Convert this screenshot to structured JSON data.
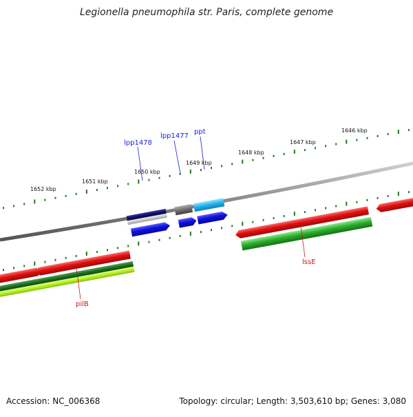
{
  "title": "Legionella pneumophila str. Paris, complete genome",
  "footer": {
    "accession": "Accession: NC_006368",
    "summary": "Topology: circular; Length: 3,503,610 bp; Genes: 3,080"
  },
  "scale": {
    "tick_labels": [
      "1652 kbp",
      "1651 kbp",
      "1650 kbp",
      "1649 kbp",
      "1648 kbp",
      "1647 kbp",
      "1646 kbp"
    ]
  },
  "genes": {
    "labels": [
      "lpp1478",
      "lpp1477",
      "ppt",
      "lssE",
      "pilB"
    ]
  },
  "colors": {
    "red": "#e01010",
    "green": "#22a022",
    "lime": "#b4f020",
    "blue": "#1010e0",
    "navy": "#101070",
    "cyan": "#20b8f0",
    "gray": "#707070",
    "tick": "#1e7a1e"
  }
}
